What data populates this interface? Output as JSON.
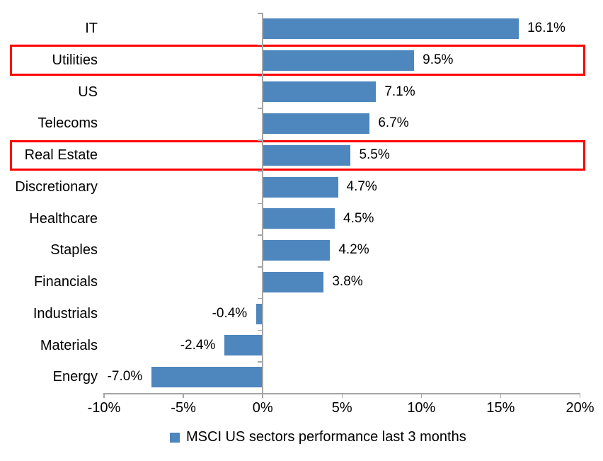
{
  "chart_data": {
    "type": "bar",
    "orientation": "horizontal",
    "title": "",
    "categories": [
      "IT",
      "Utilities",
      "US",
      "Telecoms",
      "Real Estate",
      "Discretionary",
      "Healthcare",
      "Staples",
      "Financials",
      "Industrials",
      "Materials",
      "Energy"
    ],
    "values": [
      16.1,
      9.5,
      7.1,
      6.7,
      5.5,
      4.7,
      4.5,
      4.2,
      3.8,
      -0.4,
      -2.4,
      -7.0
    ],
    "value_labels": [
      "16.1%",
      "9.5%",
      "7.1%",
      "6.7%",
      "5.5%",
      "4.7%",
      "4.5%",
      "4.2%",
      "3.8%",
      "-0.4%",
      "-2.4%",
      "-7.0%"
    ],
    "highlighted_categories": [
      "Utilities",
      "Real Estate"
    ],
    "xlabel": "",
    "ylabel": "",
    "xlim": [
      -10,
      20
    ],
    "x_ticks": [
      -10,
      -5,
      0,
      5,
      10,
      15,
      20
    ],
    "x_tick_labels": [
      "-10%",
      "-5%",
      "0%",
      "5%",
      "10%",
      "15%",
      "20%"
    ],
    "grid": false,
    "legend": {
      "position": "bottom",
      "label": "MSCI US sectors performance last 3 months"
    },
    "colors": {
      "bar": "#4E86BE",
      "highlight_box": "#FF0000",
      "axis": "#A6A6A6",
      "text": "#000000"
    }
  }
}
